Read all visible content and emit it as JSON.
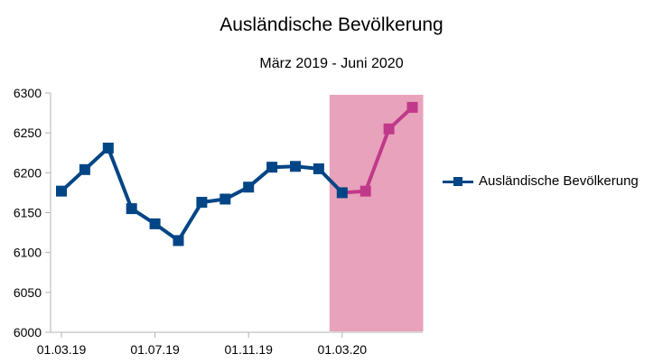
{
  "chart_data": {
    "type": "line",
    "title": "Ausländische Bevölkerung",
    "subtitle": "März 2019 - Juni 2020",
    "x_tick_labels": [
      "01.03.19",
      "01.07.19",
      "01.11.19",
      "01.03.20"
    ],
    "ylim": [
      6000,
      6300
    ],
    "y_ticks": [
      6000,
      6050,
      6100,
      6150,
      6200,
      6250,
      6300
    ],
    "grid": false,
    "legend_position": "right",
    "series": [
      {
        "name": "Ausländische Bevölkerung",
        "color": "#004586",
        "x": [
          "2019-03",
          "2019-04",
          "2019-05",
          "2019-06",
          "2019-07",
          "2019-08",
          "2019-09",
          "2019-10",
          "2019-11",
          "2019-12",
          "2020-01",
          "2020-02",
          "2020-03",
          "2020-04",
          "2020-05",
          "2020-06"
        ],
        "values": [
          6177,
          6204,
          6231,
          6155,
          6136,
          6115,
          6163,
          6167,
          6182,
          6207,
          6208,
          6205,
          6175,
          6177,
          6255,
          6282
        ]
      }
    ],
    "highlight": {
      "from": "2020-03",
      "to": "2020-06",
      "band_color": "#e8a2bb",
      "line_color": "#c0398a"
    }
  }
}
